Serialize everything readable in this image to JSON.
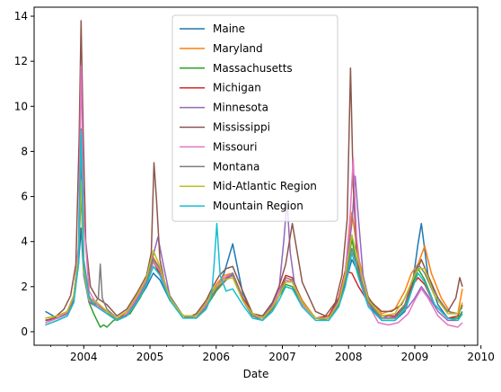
{
  "chart_data": {
    "type": "line",
    "title": "",
    "xlabel": "Date",
    "ylabel": "",
    "xlim": [
      2003.25,
      2009.95
    ],
    "ylim": [
      -0.6,
      14.4
    ],
    "x_ticks": [
      2004,
      2005,
      2006,
      2007,
      2008,
      2009,
      2010
    ],
    "x_tick_labels": [
      "2004",
      "2005",
      "2006",
      "2007",
      "2008",
      "2009",
      "2010"
    ],
    "y_ticks": [
      0,
      2,
      4,
      6,
      8,
      10,
      12,
      14
    ],
    "y_tick_labels": [
      "0",
      "2",
      "4",
      "6",
      "8",
      "10",
      "12",
      "14"
    ],
    "grid": false,
    "legend": "top-center",
    "series": [
      {
        "name": "Maine",
        "color": "#1f77b4",
        "x": [
          2003.42,
          2003.6,
          2003.75,
          2003.85,
          2003.92,
          2003.96,
          2004.0,
          2004.08,
          2004.2,
          2004.35,
          2004.5,
          2004.65,
          2004.8,
          2004.95,
          2005.05,
          2005.15,
          2005.3,
          2005.5,
          2005.7,
          2005.85,
          2006.0,
          2006.12,
          2006.25,
          2006.4,
          2006.55,
          2006.7,
          2006.85,
          2006.95,
          2007.05,
          2007.15,
          2007.3,
          2007.5,
          2007.7,
          2007.85,
          2007.95,
          2008.05,
          2008.15,
          2008.3,
          2008.5,
          2008.7,
          2008.85,
          2008.95,
          2009.05,
          2009.1,
          2009.2,
          2009.35,
          2009.5,
          2009.65,
          2009.72
        ],
        "y": [
          0.9,
          0.6,
          0.8,
          1.5,
          3.0,
          4.6,
          2.5,
          1.3,
          1.2,
          0.9,
          0.5,
          0.8,
          1.3,
          2.0,
          2.6,
          2.3,
          1.4,
          0.7,
          0.7,
          1.2,
          1.9,
          2.6,
          3.9,
          1.7,
          0.8,
          0.6,
          1.1,
          1.6,
          2.0,
          1.9,
          1.2,
          0.6,
          0.6,
          1.2,
          2.1,
          3.2,
          2.6,
          1.2,
          0.5,
          0.5,
          0.9,
          1.8,
          3.9,
          4.8,
          2.5,
          1.2,
          0.6,
          0.6,
          0.8
        ]
      },
      {
        "name": "Maryland",
        "color": "#ff7f0e",
        "x": [
          2003.42,
          2003.6,
          2003.75,
          2003.85,
          2003.92,
          2003.96,
          2004.0,
          2004.08,
          2004.2,
          2004.35,
          2004.5,
          2004.65,
          2004.8,
          2004.95,
          2005.05,
          2005.15,
          2005.3,
          2005.5,
          2005.7,
          2005.85,
          2006.0,
          2006.12,
          2006.25,
          2006.4,
          2006.55,
          2006.7,
          2006.85,
          2006.95,
          2007.05,
          2007.15,
          2007.3,
          2007.5,
          2007.7,
          2007.85,
          2007.95,
          2008.05,
          2008.15,
          2008.3,
          2008.5,
          2008.7,
          2008.85,
          2008.95,
          2009.05,
          2009.15,
          2009.25,
          2009.4,
          2009.55,
          2009.65,
          2009.72
        ],
        "y": [
          0.6,
          0.7,
          0.9,
          1.6,
          3.5,
          7.0,
          2.8,
          1.5,
          1.3,
          0.9,
          0.6,
          0.9,
          1.6,
          2.4,
          3.3,
          2.8,
          1.5,
          0.7,
          0.7,
          1.3,
          2.1,
          2.5,
          2.6,
          1.5,
          0.8,
          0.6,
          1.1,
          1.6,
          2.2,
          2.3,
          1.4,
          0.6,
          0.6,
          1.4,
          2.7,
          5.3,
          3.3,
          1.5,
          0.8,
          1.0,
          1.8,
          2.6,
          3.0,
          3.8,
          2.6,
          1.5,
          0.8,
          0.8,
          1.9
        ]
      },
      {
        "name": "Massachusetts",
        "color": "#2ca02c",
        "x": [
          2003.42,
          2003.6,
          2003.75,
          2003.85,
          2003.92,
          2003.96,
          2004.0,
          2004.08,
          2004.15,
          2004.2,
          2004.25,
          2004.3,
          2004.35,
          2004.45,
          2004.55,
          2004.7,
          2004.85,
          2004.95,
          2005.05,
          2005.15,
          2005.3,
          2005.5,
          2005.7,
          2005.85,
          2006.0,
          2006.12,
          2006.25,
          2006.4,
          2006.55,
          2006.7,
          2006.85,
          2006.95,
          2007.05,
          2007.15,
          2007.3,
          2007.5,
          2007.7,
          2007.85,
          2007.95,
          2008.05,
          2008.15,
          2008.3,
          2008.5,
          2008.7,
          2008.85,
          2008.95,
          2009.05,
          2009.15,
          2009.3,
          2009.5,
          2009.65,
          2009.72
        ],
        "y": [
          0.5,
          0.6,
          0.8,
          1.4,
          3.2,
          6.2,
          2.6,
          1.3,
          0.8,
          0.5,
          0.2,
          0.3,
          0.2,
          0.5,
          0.6,
          0.8,
          1.5,
          2.1,
          2.9,
          2.6,
          1.4,
          0.7,
          0.6,
          1.1,
          1.8,
          2.2,
          2.6,
          1.5,
          0.7,
          0.6,
          1.0,
          1.6,
          2.1,
          2.0,
          1.2,
          0.6,
          0.6,
          1.3,
          2.4,
          4.1,
          2.6,
          1.3,
          0.6,
          0.6,
          1.1,
          1.9,
          2.8,
          2.3,
          1.2,
          0.6,
          0.6,
          0.9
        ]
      },
      {
        "name": "Michigan",
        "color": "#d62728",
        "x": [
          2003.42,
          2003.6,
          2003.75,
          2003.85,
          2003.92,
          2003.96,
          2004.0,
          2004.08,
          2004.2,
          2004.35,
          2004.5,
          2004.65,
          2004.8,
          2004.95,
          2005.05,
          2005.15,
          2005.3,
          2005.5,
          2005.7,
          2005.85,
          2006.0,
          2006.12,
          2006.25,
          2006.4,
          2006.55,
          2006.7,
          2006.85,
          2006.95,
          2007.05,
          2007.15,
          2007.3,
          2007.5,
          2007.7,
          2007.85,
          2007.95,
          2008.05,
          2008.15,
          2008.3,
          2008.5,
          2008.7,
          2008.85,
          2008.95,
          2009.05,
          2009.15,
          2009.3,
          2009.5,
          2009.65,
          2009.72
        ],
        "y": [
          0.5,
          0.6,
          0.9,
          1.6,
          3.6,
          7.5,
          2.8,
          1.4,
          1.2,
          0.9,
          0.6,
          0.8,
          1.5,
          2.3,
          3.1,
          2.6,
          1.4,
          0.7,
          0.7,
          1.3,
          2.0,
          2.3,
          2.6,
          1.5,
          0.8,
          0.6,
          1.2,
          1.8,
          2.5,
          2.4,
          1.3,
          0.6,
          0.7,
          1.5,
          2.7,
          2.6,
          2.0,
          1.3,
          0.7,
          0.7,
          1.2,
          2.0,
          2.4,
          2.1,
          1.2,
          0.6,
          0.7,
          1.2
        ]
      },
      {
        "name": "Minnesota",
        "color": "#9467bd",
        "x": [
          2003.42,
          2003.6,
          2003.75,
          2003.85,
          2003.92,
          2003.96,
          2004.0,
          2004.08,
          2004.2,
          2004.35,
          2004.5,
          2004.65,
          2004.8,
          2004.95,
          2005.05,
          2005.12,
          2005.2,
          2005.3,
          2005.5,
          2005.7,
          2005.85,
          2006.0,
          2006.12,
          2006.25,
          2006.4,
          2006.55,
          2006.7,
          2006.85,
          2006.95,
          2007.02,
          2007.07,
          2007.12,
          2007.2,
          2007.35,
          2007.5,
          2007.7,
          2007.85,
          2007.95,
          2008.05,
          2008.1,
          2008.15,
          2008.22,
          2008.3,
          2008.45,
          2008.6,
          2008.75,
          2008.9,
          2009.0,
          2009.1,
          2009.2,
          2009.35,
          2009.5,
          2009.65,
          2009.72
        ],
        "y": [
          0.4,
          0.6,
          0.8,
          1.5,
          3.3,
          6.8,
          2.6,
          1.3,
          1.1,
          0.8,
          0.5,
          0.7,
          1.4,
          2.2,
          3.4,
          4.2,
          3.0,
          1.6,
          0.7,
          0.6,
          1.2,
          1.9,
          2.3,
          2.5,
          1.4,
          0.7,
          0.6,
          1.2,
          1.9,
          4.0,
          5.8,
          3.5,
          1.8,
          1.1,
          0.6,
          0.6,
          1.4,
          2.5,
          4.8,
          6.9,
          5.0,
          2.5,
          1.5,
          0.8,
          0.6,
          0.7,
          1.1,
          1.5,
          2.0,
          1.6,
          0.9,
          0.5,
          0.5,
          0.8
        ]
      },
      {
        "name": "Mississippi",
        "color": "#8c564b",
        "x": [
          2003.42,
          2003.55,
          2003.7,
          2003.8,
          2003.88,
          2003.93,
          2003.96,
          2003.99,
          2004.03,
          2004.1,
          2004.2,
          2004.35,
          2004.5,
          2004.65,
          2004.8,
          2004.95,
          2005.02,
          2005.06,
          2005.1,
          2005.15,
          2005.25,
          2005.4,
          2005.55,
          2005.7,
          2005.85,
          2005.95,
          2006.05,
          2006.15,
          2006.25,
          2006.4,
          2006.55,
          2006.7,
          2006.85,
          2006.95,
          2007.05,
          2007.15,
          2007.3,
          2007.5,
          2007.65,
          2007.8,
          2007.9,
          2007.98,
          2008.03,
          2008.07,
          2008.12,
          2008.2,
          2008.35,
          2008.5,
          2008.65,
          2008.8,
          2008.9,
          2009.0,
          2009.1,
          2009.2,
          2009.35,
          2009.5,
          2009.62,
          2009.68,
          2009.72
        ],
        "y": [
          0.5,
          0.6,
          1.0,
          1.6,
          3.0,
          8.5,
          13.8,
          9.0,
          4.0,
          2.0,
          1.5,
          1.2,
          0.7,
          1.0,
          1.7,
          2.5,
          3.5,
          7.5,
          5.8,
          3.2,
          1.8,
          1.0,
          0.6,
          0.8,
          1.4,
          2.0,
          2.5,
          2.8,
          2.9,
          1.8,
          0.8,
          0.7,
          1.3,
          2.0,
          3.0,
          4.8,
          2.2,
          0.9,
          0.7,
          1.3,
          2.5,
          5.0,
          11.7,
          6.5,
          3.5,
          2.0,
          1.3,
          0.9,
          0.9,
          1.2,
          1.8,
          2.5,
          3.2,
          2.5,
          1.5,
          0.9,
          1.5,
          2.4,
          2.0
        ]
      },
      {
        "name": "Missouri",
        "color": "#e377c2",
        "x": [
          2003.42,
          2003.6,
          2003.75,
          2003.85,
          2003.92,
          2003.96,
          2004.0,
          2004.08,
          2004.2,
          2004.35,
          2004.5,
          2004.65,
          2004.8,
          2004.95,
          2005.05,
          2005.15,
          2005.3,
          2005.5,
          2005.7,
          2005.85,
          2006.0,
          2006.12,
          2006.25,
          2006.4,
          2006.55,
          2006.7,
          2006.85,
          2006.95,
          2007.05,
          2007.15,
          2007.3,
          2007.5,
          2007.7,
          2007.85,
          2007.95,
          2008.02,
          2008.07,
          2008.12,
          2008.2,
          2008.3,
          2008.45,
          2008.6,
          2008.75,
          2008.9,
          2009.0,
          2009.1,
          2009.2,
          2009.35,
          2009.5,
          2009.65,
          2009.72
        ],
        "y": [
          0.4,
          0.6,
          0.9,
          1.6,
          3.8,
          11.8,
          5.0,
          1.8,
          1.2,
          0.8,
          0.5,
          0.8,
          1.5,
          2.3,
          3.1,
          2.7,
          1.4,
          0.7,
          0.6,
          1.2,
          2.0,
          2.4,
          2.6,
          1.4,
          0.7,
          0.6,
          1.1,
          1.8,
          2.3,
          2.2,
          1.2,
          0.6,
          0.6,
          1.3,
          2.6,
          5.0,
          7.7,
          4.2,
          2.2,
          1.2,
          0.4,
          0.3,
          0.4,
          0.8,
          1.4,
          1.9,
          1.5,
          0.7,
          0.3,
          0.2,
          0.4
        ]
      },
      {
        "name": "Montana",
        "color": "#7f7f7f",
        "x": [
          2003.42,
          2003.6,
          2003.75,
          2003.85,
          2003.92,
          2003.96,
          2004.0,
          2004.08,
          2004.15,
          2004.22,
          2004.25,
          2004.28,
          2004.35,
          2004.5,
          2004.65,
          2004.8,
          2004.95,
          2005.05,
          2005.15,
          2005.3,
          2005.5,
          2005.7,
          2005.85,
          2006.0,
          2006.12,
          2006.25,
          2006.4,
          2006.55,
          2006.7,
          2006.85,
          2006.95,
          2007.05,
          2007.15,
          2007.3,
          2007.5,
          2007.7,
          2007.85,
          2007.95,
          2008.05,
          2008.15,
          2008.3,
          2008.5,
          2008.7,
          2008.85,
          2008.95,
          2009.05,
          2009.15,
          2009.3,
          2009.5,
          2009.65,
          2009.72
        ],
        "y": [
          0.3,
          0.5,
          0.7,
          1.3,
          3.0,
          9.0,
          3.2,
          1.6,
          1.2,
          1.5,
          3.0,
          1.5,
          1.0,
          0.6,
          0.7,
          1.3,
          2.2,
          3.2,
          2.8,
          1.6,
          0.7,
          0.6,
          1.1,
          1.9,
          2.2,
          2.6,
          1.4,
          0.7,
          0.5,
          1.0,
          1.6,
          2.4,
          2.3,
          1.3,
          0.6,
          0.5,
          1.2,
          2.3,
          3.7,
          2.7,
          1.3,
          0.6,
          0.6,
          1.2,
          2.2,
          3.0,
          2.6,
          1.6,
          0.9,
          0.8,
          1.1
        ]
      },
      {
        "name": "Mid-Atlantic Region",
        "color": "#bcbd22",
        "x": [
          2003.42,
          2003.6,
          2003.75,
          2003.85,
          2003.92,
          2003.96,
          2004.0,
          2004.08,
          2004.2,
          2004.35,
          2004.5,
          2004.65,
          2004.8,
          2004.95,
          2005.05,
          2005.15,
          2005.3,
          2005.5,
          2005.7,
          2005.85,
          2006.0,
          2006.12,
          2006.25,
          2006.4,
          2006.55,
          2006.7,
          2006.85,
          2006.95,
          2007.05,
          2007.15,
          2007.3,
          2007.5,
          2007.7,
          2007.85,
          2007.95,
          2008.05,
          2008.15,
          2008.3,
          2008.5,
          2008.7,
          2008.85,
          2008.95,
          2009.05,
          2009.15,
          2009.3,
          2009.5,
          2009.65,
          2009.72
        ],
        "y": [
          0.6,
          0.7,
          0.9,
          1.6,
          3.4,
          6.7,
          2.7,
          1.4,
          1.3,
          0.9,
          0.6,
          0.9,
          1.6,
          2.4,
          3.6,
          2.9,
          1.5,
          0.7,
          0.7,
          1.3,
          2.0,
          2.3,
          2.4,
          1.4,
          0.8,
          0.6,
          1.1,
          1.6,
          2.2,
          2.2,
          1.3,
          0.6,
          0.6,
          1.3,
          2.5,
          4.3,
          3.1,
          1.4,
          0.7,
          0.8,
          1.5,
          2.2,
          2.8,
          2.8,
          1.6,
          0.8,
          0.8,
          1.3
        ]
      },
      {
        "name": "Mountain Region",
        "color": "#17becf",
        "x": [
          2003.42,
          2003.6,
          2003.75,
          2003.85,
          2003.92,
          2003.96,
          2004.0,
          2004.08,
          2004.2,
          2004.35,
          2004.5,
          2004.65,
          2004.8,
          2004.95,
          2005.05,
          2005.15,
          2005.3,
          2005.5,
          2005.7,
          2005.85,
          2005.93,
          2005.97,
          2006.01,
          2006.06,
          2006.15,
          2006.25,
          2006.4,
          2006.55,
          2006.7,
          2006.85,
          2006.95,
          2007.05,
          2007.15,
          2007.3,
          2007.5,
          2007.7,
          2007.85,
          2007.95,
          2008.05,
          2008.15,
          2008.3,
          2008.5,
          2008.7,
          2008.85,
          2008.95,
          2009.05,
          2009.15,
          2009.3,
          2009.5,
          2009.65,
          2009.72
        ],
        "y": [
          0.3,
          0.5,
          0.7,
          1.3,
          3.0,
          8.9,
          3.0,
          1.5,
          1.1,
          0.8,
          0.5,
          0.7,
          1.3,
          2.1,
          2.9,
          2.5,
          1.4,
          0.6,
          0.6,
          1.0,
          1.6,
          3.0,
          4.8,
          2.5,
          1.8,
          1.9,
          1.2,
          0.6,
          0.5,
          0.9,
          1.4,
          2.0,
          1.9,
          1.1,
          0.5,
          0.5,
          1.1,
          2.0,
          3.5,
          2.4,
          1.1,
          0.5,
          0.5,
          1.0,
          1.8,
          2.6,
          2.2,
          1.2,
          0.6,
          0.5,
          0.8
        ]
      }
    ]
  }
}
